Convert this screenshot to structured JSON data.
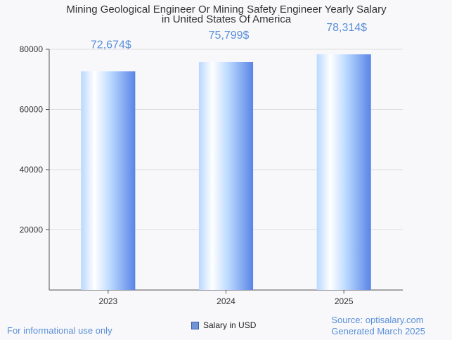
{
  "chart_data": {
    "type": "bar",
    "title_line1": "Mining Geological Engineer Or Mining Safety Engineer Yearly Salary",
    "title_line2": "in United States Of America",
    "categories": [
      "2023",
      "2024",
      "2025"
    ],
    "series": [
      {
        "name": "Salary in USD",
        "values": [
          72674,
          75799,
          78314
        ]
      }
    ],
    "data_labels": [
      "72,674$",
      "75,799$",
      "78,314$"
    ],
    "yticks": [
      20000,
      40000,
      60000,
      80000
    ],
    "ylim": [
      0,
      80000
    ],
    "grid": true,
    "legend_position": "bottom-center",
    "colors": {
      "label": "#5a8fd8",
      "bar_light": "#ffffff",
      "bar_mid": "#b9d8ff",
      "bar_dark": "#5a84e6"
    }
  },
  "footer": {
    "left": "For informational use only",
    "source": "Source: optisalary.com",
    "generated": "Generated March 2025"
  }
}
